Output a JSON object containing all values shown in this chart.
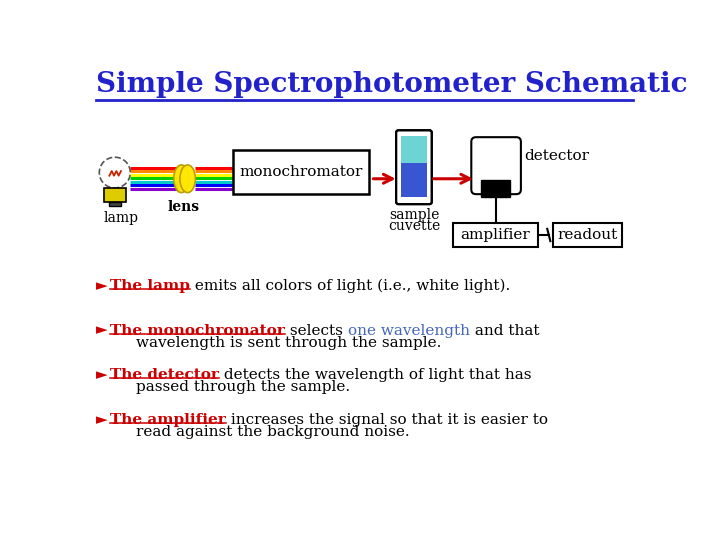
{
  "title": "Simple Spectrophotometer Schematic",
  "title_color": "#2222CC",
  "title_fontsize": 20,
  "background_color": "#FFFFFF",
  "bullet_items": [
    {
      "bullet": "►",
      "parts": [
        {
          "text": "The lamp",
          "color": "#CC0000",
          "underline": true,
          "bold": true
        },
        {
          "text": " emits all colors of light (i.e., white light).",
          "color": "#000000",
          "underline": false,
          "bold": false
        }
      ],
      "indent2": null
    },
    {
      "bullet": "►",
      "parts": [
        {
          "text": "The monochromator",
          "color": "#CC0000",
          "underline": true,
          "bold": true
        },
        {
          "text": " selects ",
          "color": "#000000",
          "underline": false,
          "bold": false
        },
        {
          "text": "one wavelength",
          "color": "#4466BB",
          "underline": false,
          "bold": false
        },
        {
          "text": " and that",
          "color": "#000000",
          "underline": false,
          "bold": false
        }
      ],
      "indent2": "wavelength is sent through the sample."
    },
    {
      "bullet": "►",
      "parts": [
        {
          "text": "The detector",
          "color": "#CC0000",
          "underline": true,
          "bold": true
        },
        {
          "text": " detects the wavelength of light that has",
          "color": "#000000",
          "underline": false,
          "bold": false
        }
      ],
      "indent2": "passed through the sample."
    },
    {
      "bullet": "►",
      "parts": [
        {
          "text": "The amplifier",
          "color": "#CC0000",
          "underline": true,
          "bold": true
        },
        {
          "text": " increases the signal so that it is easier to",
          "color": "#000000",
          "underline": false,
          "bold": false
        }
      ],
      "indent2": "read against the background noise."
    }
  ]
}
